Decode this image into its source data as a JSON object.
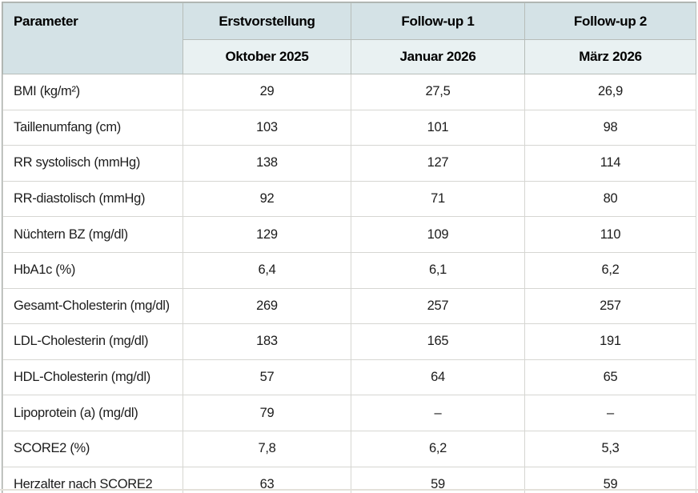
{
  "table": {
    "columns": [
      {
        "header": "Parameter",
        "subheader": ""
      },
      {
        "header": "Erstvorstellung",
        "subheader": "Oktober 2025"
      },
      {
        "header": "Follow-up 1",
        "subheader": "Januar 2026"
      },
      {
        "header": "Follow-up 2",
        "subheader": "März 2026"
      }
    ],
    "rows": [
      {
        "parameter": "BMI (kg/m²)",
        "values": [
          "29",
          "27,5",
          "26,9"
        ]
      },
      {
        "parameter": "Taillenumfang (cm)",
        "values": [
          "103",
          "101",
          "98"
        ]
      },
      {
        "parameter": "RR systolisch (mmHg)",
        "values": [
          "138",
          "127",
          "114"
        ]
      },
      {
        "parameter": "RR-diastolisch (mmHg)",
        "values": [
          "92",
          "71",
          "80"
        ]
      },
      {
        "parameter": "Nüchtern BZ (mg/dl)",
        "values": [
          "129",
          "109",
          "110"
        ]
      },
      {
        "parameter": "HbA1c (%)",
        "values": [
          "6,4",
          "6,1",
          "6,2"
        ]
      },
      {
        "parameter": "Gesamt-Cholesterin (mg/dl)",
        "values": [
          "269",
          "257",
          "257"
        ]
      },
      {
        "parameter": "LDL-Cholesterin (mg/dl)",
        "values": [
          "183",
          "165",
          "191"
        ]
      },
      {
        "parameter": "HDL-Cholesterin (mg/dl)",
        "values": [
          "57",
          "64",
          "65"
        ]
      },
      {
        "parameter": "Lipoprotein (a) (mg/dl)",
        "values": [
          "79",
          "–",
          "–"
        ]
      },
      {
        "parameter": "SCORE2 (%)",
        "values": [
          "7,8",
          "6,2",
          "5,3"
        ]
      },
      {
        "parameter": "Herzalter nach SCORE2",
        "values": [
          "63",
          "59",
          "59"
        ]
      }
    ]
  },
  "colors": {
    "header_dark": "#d4e2e6",
    "header_light": "#e9f1f2",
    "header_border": "#b7bdb9",
    "row_border": "#d6d6d2",
    "outer_border": "#a7adaa",
    "page_rule": "#e4e1da"
  }
}
